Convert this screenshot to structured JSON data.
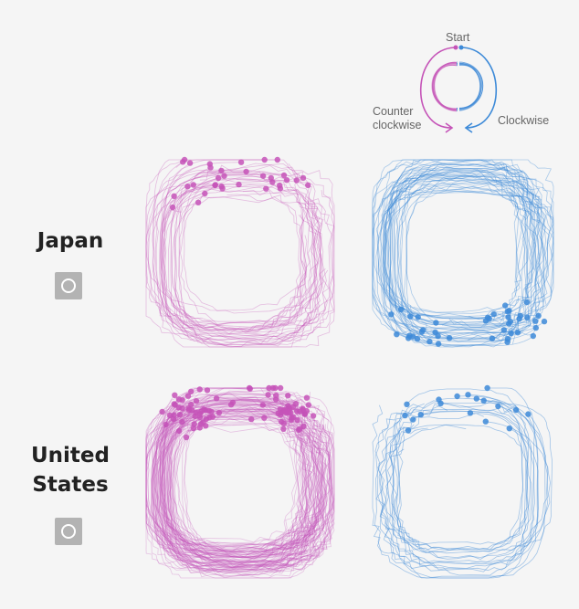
{
  "colors": {
    "ccw": "#c554b8",
    "cw": "#3d8ad8",
    "text": "#222222",
    "muted": "#666666",
    "badge": "#b3b3b3"
  },
  "legend": {
    "start_label": "Start",
    "ccw_label_line1": "Counter",
    "ccw_label_line2": "clockwise",
    "cw_label": "Clockwise"
  },
  "rows": [
    {
      "country": [
        "Japan"
      ],
      "shape_icon": "circle-icon",
      "ccw_share": "low",
      "cw_share": "high"
    },
    {
      "country": [
        "United",
        "States"
      ],
      "shape_icon": "circle-icon",
      "ccw_share": "high",
      "cw_share": "low"
    }
  ]
}
